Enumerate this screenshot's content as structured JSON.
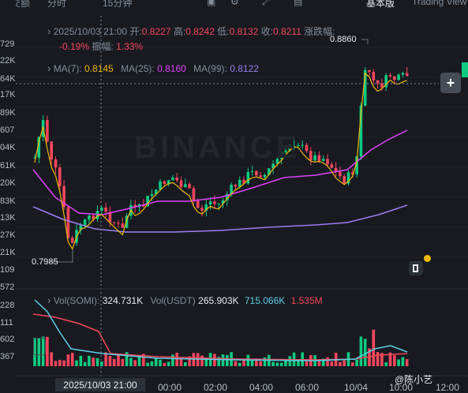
{
  "toolbar": {
    "time_label": "分时",
    "interval_label": "15分钟",
    "basic_label": "基本版",
    "tradingview_label": "Trading View",
    "left_header": "成交额"
  },
  "ohlc": {
    "datetime": "2025/10/03 21:00",
    "open_label": "开:",
    "open": "0.8227",
    "high_label": "高:",
    "high": "0.8242",
    "low_label": "低:",
    "low": "0.8132",
    "close_label": "收:",
    "close": "0.8211",
    "change_label": "涨跌幅:",
    "change": "-0.19%",
    "amplitude_label": "振幅:",
    "amplitude": "1.33%"
  },
  "ma": {
    "ma7_label": "MA(7):",
    "ma7": "0.8145",
    "ma25_label": "MA(25):",
    "ma25": "0.8160",
    "ma99_label": "MA(99):",
    "ma99": "0.8122"
  },
  "volume": {
    "som_label": "Vol(SOMI):",
    "som": "324.731K",
    "usdt_label": "Vol(USDT)",
    "usdt": "265.903K",
    "v2": "715.066K",
    "v3": "1.535M"
  },
  "markers": {
    "high": "0.8860",
    "low": "0.7985"
  },
  "left_axis": [
    "729",
    "22K",
    "64K",
    "17K",
    "89K",
    "607",
    "04K",
    "61K",
    "20K",
    "83K",
    "13K",
    "27K",
    "21K",
    "109",
    "572",
    "228",
    "111",
    "602",
    "367"
  ],
  "x_axis": {
    "cursor_label": "2025/10/03 21:00",
    "ticks": [
      "00:00",
      "02:00",
      "04:00",
      "06:00",
      "10/04",
      "10:00",
      "12:00"
    ]
  },
  "watermark": {
    "brand": "BINANCE",
    "user": "@陈小艺"
  },
  "colors": {
    "up": "#0ecb81",
    "down": "#f6465d",
    "ma7": "#f0b90b",
    "ma25": "#e040fb",
    "ma99": "#9c7df0"
  }
}
